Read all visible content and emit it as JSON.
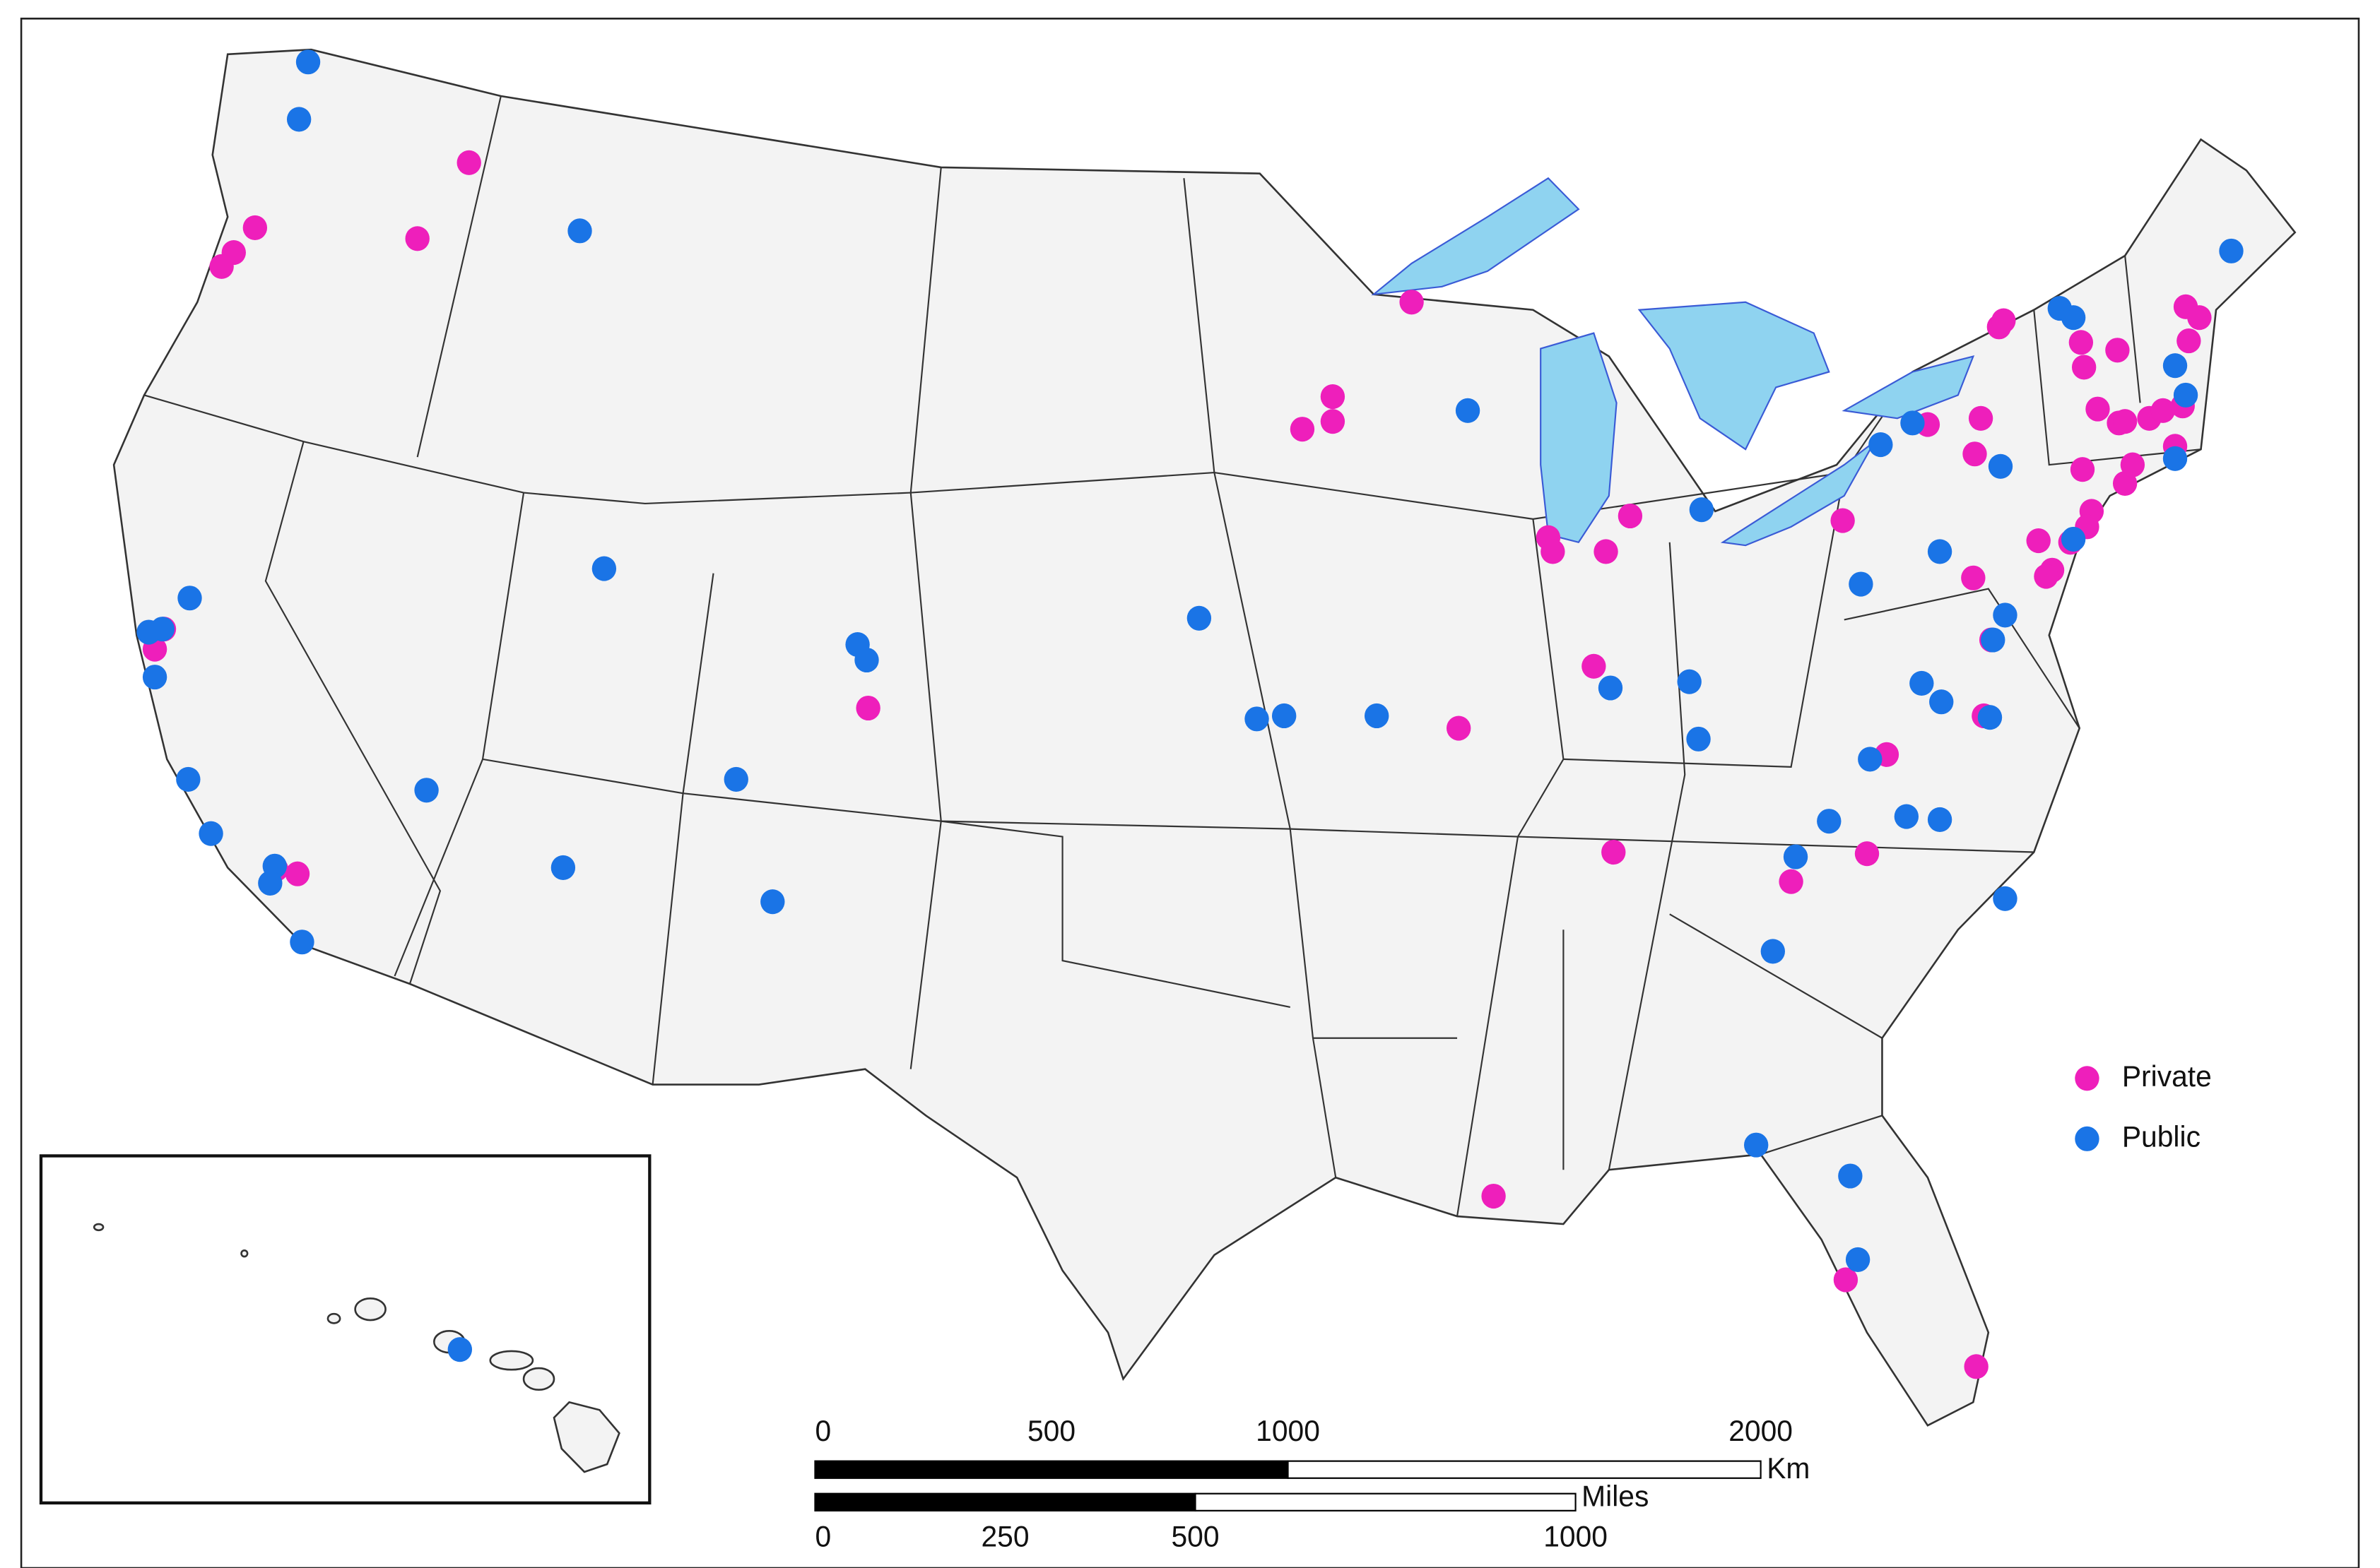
{
  "legend": {
    "series": [
      {
        "name": "Private",
        "color": "#ee1fbb"
      },
      {
        "name": "Public",
        "color": "#1a74e6"
      }
    ]
  },
  "scale_bar": {
    "km": {
      "ticks": [
        0,
        500,
        1000,
        2000
      ],
      "unit": "Km"
    },
    "miles": {
      "ticks": [
        0,
        250,
        500,
        1000
      ],
      "unit": "Miles"
    }
  }
}
